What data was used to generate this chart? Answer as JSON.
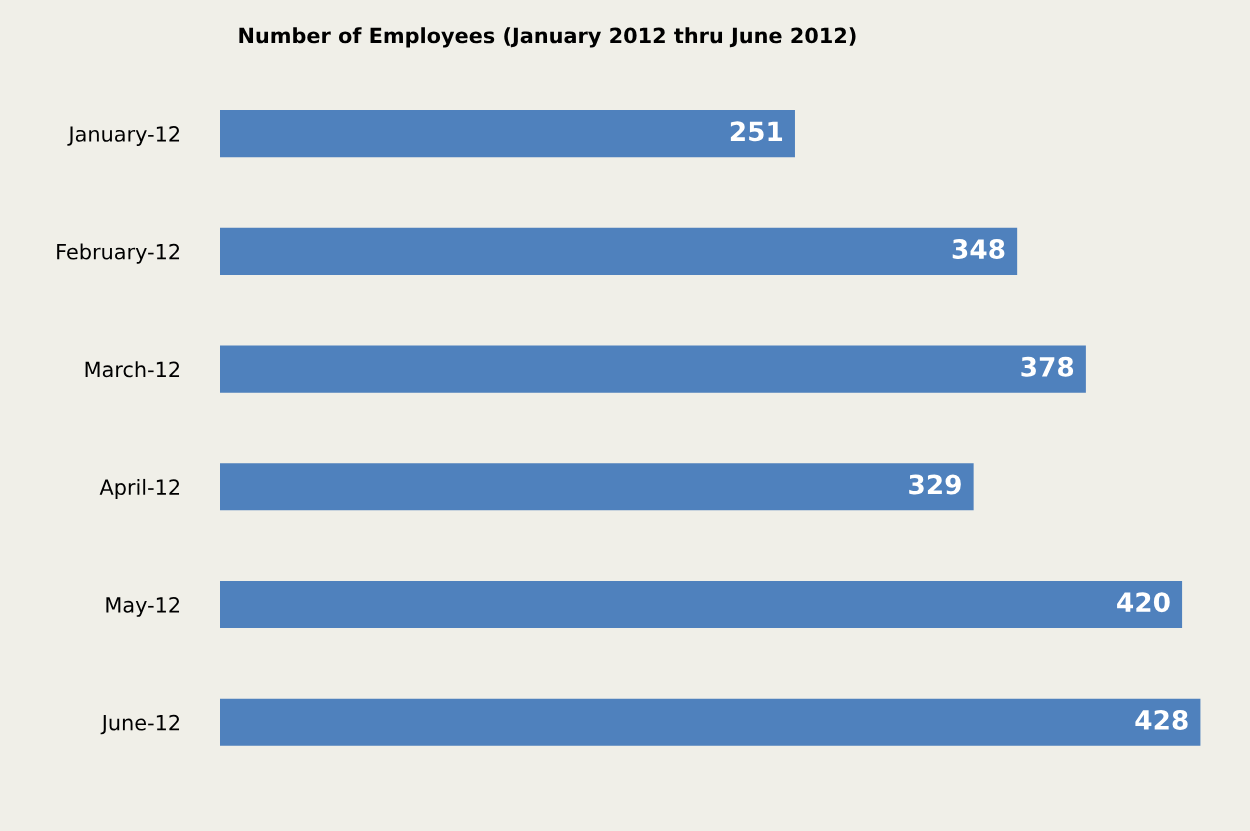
{
  "chart_data": {
    "type": "bar",
    "orientation": "horizontal",
    "title": "Number of Employees (January 2012 thru June 2012)",
    "categories": [
      "January-12",
      "February-12",
      "March-12",
      "April-12",
      "May-12",
      "June-12"
    ],
    "values": [
      251,
      348,
      378,
      329,
      420,
      428
    ],
    "color": "#4f81bd",
    "xlim": [
      0,
      430
    ],
    "tick_labels": "y",
    "data_labels": true,
    "grid": false,
    "legend": false
  }
}
